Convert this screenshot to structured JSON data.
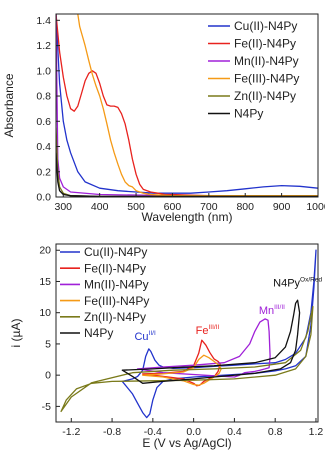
{
  "chart_data": [
    {
      "type": "line",
      "xlabel": "Wavelength (nm)",
      "ylabel": "Absorbance",
      "xlim": [
        280,
        1000
      ],
      "ylim": [
        0,
        1.45
      ],
      "x_ticks": [
        "300",
        "400",
        "500",
        "600",
        "700",
        "800",
        "900",
        "1000"
      ],
      "y_ticks": [
        "0.0",
        "0.2",
        "0.4",
        "0.6",
        "0.8",
        "1.0",
        "1.2",
        "1.4"
      ],
      "legend_position": "top-right",
      "series": [
        {
          "name": "Cu(II)-N4Py",
          "color": "#2233cc",
          "x": [
            280,
            290,
            300,
            310,
            320,
            340,
            360,
            400,
            450,
            500,
            550,
            600,
            650,
            700,
            750,
            800,
            850,
            900,
            950,
            1000
          ],
          "y": [
            1.45,
            0.9,
            0.6,
            0.45,
            0.35,
            0.2,
            0.12,
            0.07,
            0.05,
            0.04,
            0.03,
            0.03,
            0.03,
            0.04,
            0.05,
            0.065,
            0.08,
            0.09,
            0.085,
            0.07
          ]
        },
        {
          "name": "Fe(II)-N4Py",
          "color": "#e8221e",
          "x": [
            280,
            290,
            300,
            310,
            320,
            330,
            340,
            350,
            360,
            370,
            380,
            390,
            400,
            410,
            420,
            430,
            440,
            450,
            460,
            470,
            480,
            490,
            500,
            510,
            520,
            540,
            560,
            580,
            600,
            650,
            700,
            800,
            900,
            1000
          ],
          "y": [
            1.45,
            1.15,
            0.95,
            0.8,
            0.7,
            0.68,
            0.72,
            0.82,
            0.92,
            0.98,
            1.0,
            0.98,
            0.9,
            0.8,
            0.73,
            0.72,
            0.72,
            0.71,
            0.66,
            0.58,
            0.45,
            0.3,
            0.18,
            0.1,
            0.06,
            0.04,
            0.03,
            0.02,
            0.02,
            0.015,
            0.01,
            0.01,
            0.01,
            0.01
          ]
        },
        {
          "name": "Mn(II)-N4Py",
          "color": "#a020d8",
          "x": [
            280,
            285,
            290,
            300,
            320,
            400,
            600,
            800,
            1000
          ],
          "y": [
            1.45,
            0.3,
            0.15,
            0.08,
            0.04,
            0.02,
            0.01,
            0.01,
            0.01
          ]
        },
        {
          "name": "Fe(III)-N4Py",
          "color": "#f59a16",
          "x": [
            340,
            345,
            350,
            355,
            360,
            370,
            380,
            390,
            400,
            410,
            420,
            430,
            440,
            450,
            460,
            470,
            480,
            490,
            500,
            520,
            540,
            600,
            700,
            800,
            900,
            1000
          ],
          "y": [
            1.45,
            1.35,
            1.3,
            1.25,
            1.2,
            1.08,
            0.97,
            0.88,
            0.8,
            0.7,
            0.58,
            0.45,
            0.35,
            0.26,
            0.18,
            0.12,
            0.09,
            0.08,
            0.05,
            0.03,
            0.02,
            0.01,
            0.01,
            0.01,
            0.01,
            0.01
          ]
        },
        {
          "name": "Zn(II)-N4Py",
          "color": "#7a7a1a",
          "x": [
            280,
            285,
            290,
            300,
            320,
            400,
            600,
            800,
            1000
          ],
          "y": [
            0.55,
            0.2,
            0.08,
            0.03,
            0.01,
            0.005,
            0.005,
            0.005,
            0.005
          ]
        },
        {
          "name": "N4Py",
          "color": "#111111",
          "x": [
            280,
            285,
            290,
            300,
            320,
            400,
            600,
            800,
            1000
          ],
          "y": [
            0.35,
            0.12,
            0.05,
            0.02,
            0.01,
            0.005,
            0.005,
            0.005,
            0.005
          ]
        }
      ]
    },
    {
      "type": "line",
      "xlabel": "E (V vs Ag/AgCl)",
      "ylabel": "i (µA)",
      "xlim": [
        -1.35,
        1.22
      ],
      "ylim": [
        -7.5,
        21
      ],
      "x_ticks": [
        "-1.2",
        "-0.8",
        "-0.4",
        "0.0",
        "0.4",
        "0.8",
        "1.2"
      ],
      "y_ticks": [
        "-5",
        "0",
        "5",
        "10",
        "15",
        "20"
      ],
      "legend_position": "top-left",
      "annotations": [
        {
          "text": "Cu",
          "sup": "II/I",
          "color": "#2233cc",
          "x": -0.58,
          "y": 5.6
        },
        {
          "text": "Fe",
          "sup": "III/II",
          "color": "#e8221e",
          "x": 0.02,
          "y": 6.6
        },
        {
          "text": "Mn",
          "sup": "III/II",
          "color": "#a020d8",
          "x": 0.64,
          "y": 9.8
        },
        {
          "text": "N4Py",
          "sup": "Ox/Red",
          "color": "#111111",
          "x": 0.78,
          "y": 14.2
        }
      ],
      "series": [
        {
          "name": "Cu(II)-N4Py",
          "color": "#2233cc",
          "x": [
            -0.7,
            -0.6,
            -0.55,
            -0.5,
            -0.47,
            -0.44,
            -0.42,
            -0.38,
            -0.34,
            -0.3,
            -0.2,
            0.0,
            0.2,
            0.4,
            0.6,
            0.8,
            0.9,
            1.0,
            1.1,
            1.15,
            1.18,
            1.2,
            1.18,
            1.15,
            1.1,
            1.0,
            0.9,
            0.8,
            0.6,
            0.4,
            0.2,
            0.0,
            -0.2,
            -0.3,
            -0.36,
            -0.4,
            -0.43,
            -0.46,
            -0.5,
            -0.55,
            -0.6,
            -0.65,
            -0.7
          ],
          "y": [
            -1.0,
            -0.6,
            -0.2,
            0.8,
            3.0,
            4.2,
            3.8,
            2.4,
            1.6,
            1.3,
            1.1,
            1.2,
            1.4,
            1.6,
            1.8,
            2.0,
            2.5,
            3.5,
            6.0,
            10.0,
            15.0,
            20.0,
            14.0,
            8.0,
            3.0,
            1.5,
            1.0,
            0.7,
            0.3,
            0.1,
            -0.1,
            -0.3,
            -0.6,
            -1.0,
            -2.0,
            -4.0,
            -6.2,
            -6.8,
            -6.0,
            -4.5,
            -3.0,
            -2.0,
            -1.0
          ]
        },
        {
          "name": "Fe(II)-N4Py",
          "color": "#e8221e",
          "x": [
            -0.5,
            -0.3,
            -0.1,
            0.0,
            0.05,
            0.08,
            0.12,
            0.16,
            0.2,
            0.24,
            0.26,
            0.24,
            0.2,
            0.15,
            0.1,
            0.06,
            0.03,
            0.0,
            -0.1,
            -0.3,
            -0.5
          ],
          "y": [
            0.2,
            0.3,
            0.6,
            1.5,
            3.5,
            5.6,
            4.8,
            3.6,
            2.6,
            2.2,
            1.8,
            0.6,
            -0.3,
            -0.6,
            -1.0,
            -1.6,
            -1.7,
            -1.3,
            -0.6,
            -0.2,
            0.2
          ]
        },
        {
          "name": "Mn(II)-N4Py",
          "color": "#a020d8",
          "x": [
            -0.55,
            -0.3,
            0.0,
            0.3,
            0.45,
            0.55,
            0.6,
            0.65,
            0.7,
            0.73,
            0.74,
            0.75,
            0.74,
            0.7,
            0.65,
            0.6,
            0.5,
            0.45,
            0.4,
            0.3,
            0.0,
            -0.3,
            -0.55
          ],
          "y": [
            1.0,
            1.3,
            1.6,
            2.0,
            3.0,
            5.0,
            7.0,
            8.5,
            9.0,
            8.8,
            7.0,
            3.0,
            1.2,
            1.0,
            0.8,
            0.6,
            0.4,
            0.0,
            -0.3,
            -0.2,
            0.1,
            0.4,
            1.0
          ]
        },
        {
          "name": "Fe(III)-N4Py",
          "color": "#f59a16",
          "x": [
            -0.5,
            -0.3,
            -0.1,
            0.0,
            0.05,
            0.1,
            0.15,
            0.2,
            0.25,
            0.27,
            0.25,
            0.2,
            0.15,
            0.1,
            0.05,
            0.0,
            -0.1,
            -0.3,
            -0.5
          ],
          "y": [
            0.0,
            0.2,
            0.5,
            1.2,
            2.5,
            3.2,
            2.8,
            2.2,
            1.6,
            1.0,
            0.3,
            -0.3,
            -0.8,
            -1.3,
            -1.6,
            -1.5,
            -0.9,
            -0.3,
            0.0
          ]
        },
        {
          "name": "Zn(II)-N4Py",
          "color": "#7a7a1a",
          "x": [
            -1.3,
            -1.2,
            -1.0,
            -0.6,
            -0.2,
            0.2,
            0.6,
            0.9,
            1.05,
            1.12,
            1.15,
            1.17,
            1.15,
            1.1,
            1.0,
            0.8,
            0.4,
            0.0,
            -0.4,
            -0.8,
            -1.0,
            -1.15,
            -1.25,
            -1.3
          ],
          "y": [
            -5.8,
            -3.5,
            -1.2,
            0.4,
            0.8,
            1.0,
            1.3,
            2.0,
            4.0,
            7.0,
            9.5,
            11.0,
            6.5,
            3.0,
            1.0,
            0.0,
            -0.6,
            -0.8,
            -0.9,
            -1.0,
            -1.3,
            -2.2,
            -4.0,
            -5.8
          ]
        },
        {
          "name": "N4Py",
          "color": "#111111",
          "x": [
            -0.7,
            -0.4,
            -0.2,
            0.2,
            0.6,
            0.8,
            0.9,
            0.95,
            0.98,
            1.0,
            1.02,
            1.04,
            1.02,
            1.0,
            0.95,
            0.85,
            0.6,
            0.4,
            0.2,
            0.0,
            -0.3,
            -0.5,
            -0.6,
            -0.7
          ],
          "y": [
            0.8,
            1.0,
            1.2,
            1.5,
            2.0,
            2.8,
            4.5,
            7.0,
            9.5,
            11.5,
            12.0,
            10.0,
            6.5,
            4.0,
            2.0,
            1.0,
            0.3,
            0.0,
            -0.3,
            -0.6,
            -1.0,
            -1.3,
            -0.2,
            0.8
          ]
        }
      ]
    }
  ]
}
